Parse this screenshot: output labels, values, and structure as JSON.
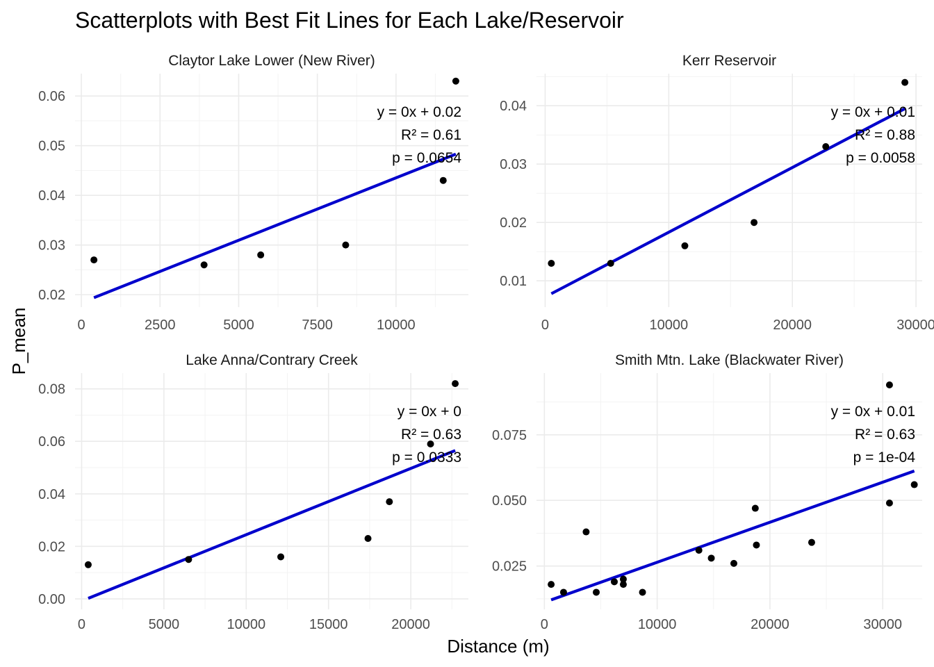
{
  "figure": {
    "title": "Scatterplots with Best Fit Lines for Each Lake/Reservoir",
    "xlabel": "Distance (m)",
    "ylabel": "P_mean"
  },
  "colors": {
    "points": "#000000",
    "fit_line": "#0000cc",
    "grid": "#ebebeb",
    "tick_text": "#4d4d4d"
  },
  "chart_data": [
    {
      "type": "scatter",
      "title": "Claytor Lake Lower (New River)",
      "xlim": [
        -200,
        12300
      ],
      "ylim": [
        0.0175,
        0.0645
      ],
      "x_ticks": [
        0,
        2500,
        5000,
        7500,
        10000
      ],
      "y_ticks": [
        0.02,
        0.03,
        0.04,
        0.05,
        0.06
      ],
      "y_tick_labels": [
        "0.02",
        "0.03",
        "0.04",
        "0.05",
        "0.06"
      ],
      "x": [
        400,
        3900,
        5700,
        8400,
        11500,
        11900
      ],
      "y": [
        0.027,
        0.026,
        0.028,
        0.03,
        0.043,
        0.063
      ],
      "fit": {
        "x": [
          400,
          11900
        ],
        "y": [
          0.0194,
          0.0483
        ]
      },
      "annotation": [
        "y = 0x + 0.02",
        "R² = 0.61",
        "p = 0.0654"
      ]
    },
    {
      "type": "scatter",
      "title": "Kerr Reservoir",
      "xlim": [
        -700,
        30500
      ],
      "ylim": [
        0.0055,
        0.0455
      ],
      "x_ticks": [
        0,
        10000,
        20000,
        30000
      ],
      "y_ticks": [
        0.01,
        0.02,
        0.03,
        0.04
      ],
      "y_tick_labels": [
        "0.01",
        "0.02",
        "0.03",
        "0.04"
      ],
      "x": [
        500,
        5300,
        11300,
        16900,
        22700,
        29100
      ],
      "y": [
        0.013,
        0.013,
        0.016,
        0.02,
        0.033,
        0.044
      ],
      "fit": {
        "x": [
          500,
          29100
        ],
        "y": [
          0.0078,
          0.0395
        ]
      },
      "annotation": [
        "y = 0x + 0.01",
        "R² = 0.88",
        "p = 0.0058"
      ]
    },
    {
      "type": "scatter",
      "title": "Lake Anna/Contrary Creek",
      "xlim": [
        -400,
        23500
      ],
      "ylim": [
        -0.004,
        0.086
      ],
      "x_ticks": [
        0,
        5000,
        10000,
        15000,
        20000
      ],
      "y_ticks": [
        0.0,
        0.02,
        0.04,
        0.06,
        0.08
      ],
      "y_tick_labels": [
        "0.00",
        "0.02",
        "0.04",
        "0.06",
        "0.08"
      ],
      "x": [
        400,
        6500,
        12100,
        17400,
        18700,
        21200,
        22700
      ],
      "y": [
        0.013,
        0.015,
        0.016,
        0.023,
        0.037,
        0.059,
        0.082
      ],
      "fit": {
        "x": [
          400,
          22700
        ],
        "y": [
          0.0002,
          0.0565
        ]
      },
      "annotation": [
        "y = 0x + 0",
        "R² = 0.63",
        "p = 0.0333"
      ]
    },
    {
      "type": "scatter",
      "title": "Smith Mtn. Lake (Blackwater River)",
      "xlim": [
        -700,
        33500
      ],
      "ylim": [
        0.0085,
        0.0985
      ],
      "x_ticks": [
        0,
        10000,
        20000,
        30000
      ],
      "y_ticks": [
        0.025,
        0.05,
        0.075
      ],
      "y_tick_labels": [
        "0.025",
        "0.050",
        "0.075"
      ],
      "x": [
        600,
        1700,
        3700,
        4600,
        6200,
        7000,
        7000,
        8700,
        13700,
        14800,
        16800,
        18700,
        18800,
        23700,
        30600,
        30600,
        32800
      ],
      "y": [
        0.018,
        0.015,
        0.038,
        0.015,
        0.019,
        0.018,
        0.02,
        0.015,
        0.031,
        0.028,
        0.026,
        0.047,
        0.033,
        0.034,
        0.094,
        0.049,
        0.056
      ],
      "fit": {
        "x": [
          600,
          32800
        ],
        "y": [
          0.0121,
          0.0612
        ]
      },
      "annotation": [
        "y = 0x + 0.01",
        "R² = 0.63",
        "p = 1e-04"
      ]
    }
  ]
}
